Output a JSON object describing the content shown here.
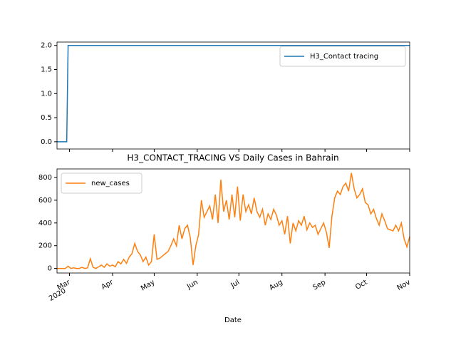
{
  "chart_data": [
    {
      "type": "line",
      "xlim": [
        0,
        254
      ],
      "ylim": [
        -0.15,
        2.07
      ],
      "xticks": [
        9,
        40,
        70,
        101,
        131,
        162,
        193,
        223,
        254
      ],
      "yticks": [
        {
          "value": 0,
          "label": "0.0"
        },
        {
          "value": 0.5,
          "label": "0.5"
        },
        {
          "value": 1,
          "label": "1.0"
        },
        {
          "value": 1.5,
          "label": "1.5"
        },
        {
          "value": 2,
          "label": "2.0"
        }
      ],
      "legend": "upper right",
      "series": [
        {
          "name": "H3_Contact tracing",
          "color": "#1f77b4",
          "x": [
            0,
            7,
            8,
            254
          ],
          "values": [
            0,
            0,
            2,
            2
          ]
        }
      ]
    },
    {
      "type": "line",
      "title": "H3_CONTACT_TRACING VS Daily Cases in Bahrain",
      "xlabel": "Date",
      "xlim": [
        0,
        254
      ],
      "ylim": [
        -40,
        875
      ],
      "xticks": [
        {
          "value": 9,
          "label": "Mar"
        },
        {
          "value": 40,
          "label": "Apr"
        },
        {
          "value": 70,
          "label": "May"
        },
        {
          "value": 101,
          "label": "Jun"
        },
        {
          "value": 131,
          "label": "Jul"
        },
        {
          "value": 162,
          "label": "Aug"
        },
        {
          "value": 193,
          "label": "Sep"
        },
        {
          "value": 223,
          "label": "Oct"
        },
        {
          "value": 254,
          "label": "Nov"
        }
      ],
      "xtick_sublabel": "2020",
      "yticks": [
        0,
        200,
        400,
        600,
        800
      ],
      "legend": "upper left",
      "series": [
        {
          "name": "new_cases",
          "color": "#ff7f0e",
          "x": [
            0,
            2,
            4,
            6,
            8,
            10,
            12,
            14,
            16,
            18,
            20,
            22,
            24,
            26,
            28,
            30,
            32,
            34,
            36,
            38,
            40,
            42,
            44,
            46,
            48,
            50,
            52,
            54,
            56,
            58,
            60,
            62,
            64,
            66,
            68,
            70,
            72,
            74,
            76,
            78,
            80,
            82,
            84,
            86,
            88,
            90,
            92,
            94,
            96,
            98,
            100,
            102,
            104,
            106,
            108,
            110,
            112,
            114,
            116,
            118,
            120,
            122,
            124,
            126,
            128,
            130,
            132,
            134,
            136,
            138,
            140,
            142,
            144,
            146,
            148,
            150,
            152,
            154,
            156,
            158,
            160,
            162,
            164,
            166,
            168,
            170,
            172,
            174,
            176,
            178,
            180,
            182,
            184,
            186,
            188,
            190,
            192,
            194,
            196,
            198,
            200,
            202,
            204,
            206,
            208,
            210,
            212,
            214,
            216,
            218,
            220,
            222,
            224,
            226,
            228,
            230,
            232,
            234,
            236,
            238,
            240,
            242,
            244,
            246,
            248,
            250,
            252,
            254
          ],
          "values": [
            0,
            0,
            0,
            0,
            20,
            0,
            5,
            0,
            0,
            10,
            0,
            5,
            85,
            10,
            0,
            15,
            30,
            10,
            40,
            20,
            30,
            15,
            60,
            40,
            80,
            45,
            100,
            130,
            220,
            150,
            120,
            60,
            100,
            30,
            60,
            300,
            80,
            90,
            110,
            130,
            150,
            200,
            260,
            200,
            380,
            260,
            350,
            380,
            270,
            30,
            200,
            300,
            600,
            450,
            500,
            550,
            430,
            650,
            400,
            780,
            500,
            600,
            430,
            650,
            450,
            720,
            420,
            650,
            500,
            560,
            480,
            620,
            500,
            450,
            520,
            380,
            480,
            430,
            520,
            470,
            380,
            420,
            300,
            460,
            220,
            400,
            330,
            420,
            380,
            460,
            340,
            400,
            360,
            380,
            300,
            350,
            400,
            320,
            180,
            460,
            620,
            680,
            650,
            720,
            750,
            680,
            840,
            700,
            620,
            650,
            700,
            580,
            560,
            480,
            520,
            440,
            380,
            480,
            420,
            350,
            340,
            330,
            380,
            330,
            400,
            260,
            190,
            280
          ]
        }
      ]
    }
  ]
}
